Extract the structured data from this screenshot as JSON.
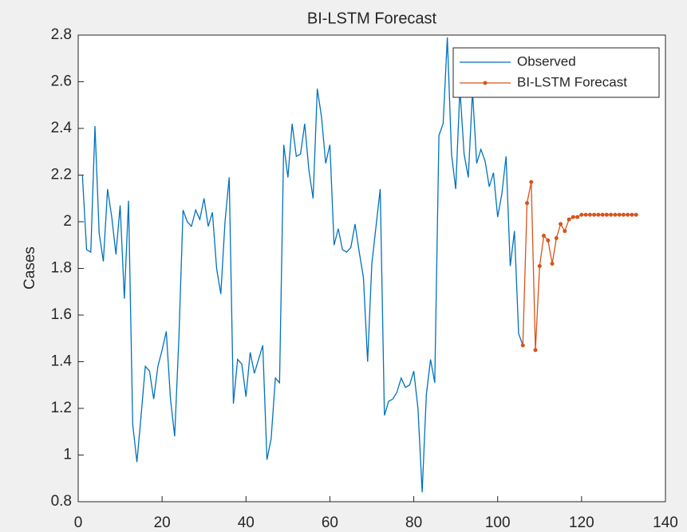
{
  "chart_data": {
    "type": "line",
    "title": "BI-LSTM Forecast",
    "y_label": "Cases",
    "xlim": [
      0,
      140
    ],
    "xticks": [
      0,
      20,
      40,
      60,
      80,
      100,
      120,
      140
    ],
    "ylim": [
      0.8,
      2.8
    ],
    "yticks": [
      0.8,
      1,
      1.2,
      1.4,
      1.6,
      1.8,
      2,
      2.2,
      2.4,
      2.6,
      2.8
    ],
    "legend_position": "northeast",
    "series": [
      {
        "name": "Observed",
        "color": "#0072BD",
        "marker": "none",
        "x": [
          1,
          2,
          3,
          4,
          5,
          6,
          7,
          8,
          9,
          10,
          11,
          12,
          13,
          14,
          15,
          16,
          17,
          18,
          19,
          20,
          21,
          22,
          23,
          24,
          25,
          26,
          27,
          28,
          29,
          30,
          31,
          32,
          33,
          34,
          35,
          36,
          37,
          38,
          39,
          40,
          41,
          42,
          43,
          44,
          45,
          46,
          47,
          48,
          49,
          50,
          51,
          52,
          53,
          54,
          55,
          56,
          57,
          58,
          59,
          60,
          61,
          62,
          63,
          64,
          65,
          66,
          67,
          68,
          69,
          70,
          71,
          72,
          73,
          74,
          75,
          76,
          77,
          78,
          79,
          80,
          81,
          82,
          83,
          84,
          85,
          86,
          87,
          88,
          89,
          90,
          91,
          92,
          93,
          94,
          95,
          96,
          97,
          98,
          99,
          100,
          101,
          102,
          103,
          104,
          105,
          106
        ],
        "values": [
          2.2,
          1.88,
          1.87,
          2.41,
          1.95,
          1.83,
          2.14,
          2.02,
          1.86,
          2.07,
          1.67,
          2.09,
          1.13,
          0.97,
          1.17,
          1.38,
          1.36,
          1.24,
          1.38,
          1.45,
          1.53,
          1.24,
          1.08,
          1.5,
          2.05,
          2.0,
          1.98,
          2.05,
          2.01,
          2.1,
          1.98,
          2.04,
          1.8,
          1.69,
          2.0,
          2.19,
          1.22,
          1.41,
          1.39,
          1.25,
          1.44,
          1.35,
          1.41,
          1.47,
          0.98,
          1.07,
          1.33,
          1.31,
          2.33,
          2.19,
          2.42,
          2.28,
          2.29,
          2.42,
          2.22,
          2.1,
          2.57,
          2.45,
          2.25,
          2.33,
          1.9,
          1.97,
          1.88,
          1.87,
          1.89,
          1.99,
          1.87,
          1.76,
          1.4,
          1.82,
          1.98,
          2.14,
          1.17,
          1.23,
          1.24,
          1.27,
          1.33,
          1.29,
          1.3,
          1.36,
          1.2,
          0.84,
          1.26,
          1.41,
          1.31,
          2.37,
          2.42,
          2.79,
          2.29,
          2.14,
          2.57,
          2.29,
          2.19,
          2.56,
          2.25,
          2.31,
          2.26,
          2.15,
          2.21,
          2.02,
          2.12,
          2.28,
          1.81,
          1.96,
          1.52,
          1.47
        ]
      },
      {
        "name": "BI-LSTM Forecast",
        "color": "#D95319",
        "marker": "circle",
        "x": [
          106,
          107,
          108,
          109,
          110,
          111,
          112,
          113,
          114,
          115,
          116,
          117,
          118,
          119,
          120,
          121,
          122,
          123,
          124,
          125,
          126,
          127,
          128,
          129,
          130,
          131,
          132,
          133
        ],
        "values": [
          1.47,
          2.08,
          2.17,
          1.45,
          1.81,
          1.94,
          1.92,
          1.82,
          1.93,
          1.99,
          1.96,
          2.01,
          2.02,
          2.02,
          2.03,
          2.03,
          2.03,
          2.03,
          2.03,
          2.03,
          2.03,
          2.03,
          2.03,
          2.03,
          2.03,
          2.03,
          2.03,
          2.03
        ]
      }
    ]
  }
}
